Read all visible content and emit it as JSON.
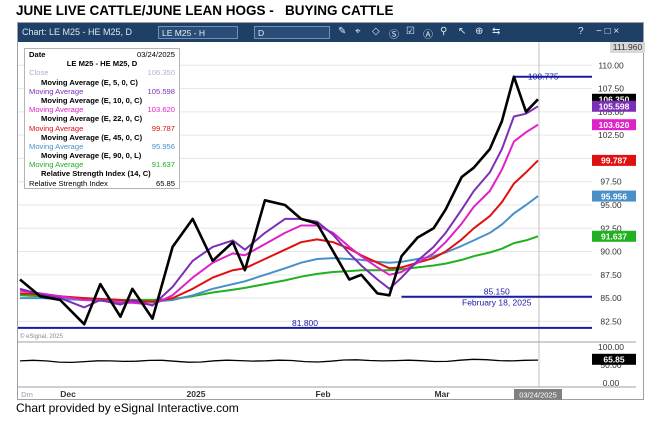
{
  "title": "JUNE LIVE CATTLE/JUNE LEAN HOGS -   BUYING CATTLE",
  "footer": "Chart provided by eSignal Interactive.com",
  "toolbar": {
    "chart_label": "Chart: LE M25 - HE M25, D",
    "symbol_box": "LE M25 - H",
    "interval_box": "D",
    "help": "?",
    "window_buttons": "− □ ×"
  },
  "watermark": "© eSignal, 2025",
  "legend": {
    "date_label": "Date",
    "date_value": "03/24/2025",
    "symbol": "LE M25 - HE M25, D",
    "rows": [
      {
        "text": "Close",
        "value": "106.350",
        "color": "#aab4c8",
        "bold": false
      },
      {
        "text": "Moving Average (E, 5, 0, C)",
        "value": "",
        "color": "#000000",
        "bold": true
      },
      {
        "text": "Moving Average",
        "value": "105.598",
        "color": "#7b2fb5",
        "bold": false
      },
      {
        "text": "Moving Average (E, 10, 0, C)",
        "value": "",
        "color": "#000000",
        "bold": true
      },
      {
        "text": "Moving Average",
        "value": "103.620",
        "color": "#e020c8",
        "bold": false
      },
      {
        "text": "Moving Average (E, 22, 0, C)",
        "value": "",
        "color": "#000000",
        "bold": true
      },
      {
        "text": "Moving Average",
        "value": "99.787",
        "color": "#e01010",
        "bold": false
      },
      {
        "text": "Moving Average (E, 45, 0, C)",
        "value": "",
        "color": "#000000",
        "bold": true
      },
      {
        "text": "Moving Average",
        "value": "95.956",
        "color": "#4a90c8",
        "bold": false
      },
      {
        "text": "Moving Average (E, 90, 0, L)",
        "value": "",
        "color": "#000000",
        "bold": true
      },
      {
        "text": "Moving Average",
        "value": "91.637",
        "color": "#20b020",
        "bold": false
      },
      {
        "text": "Relative Strength Index (14, C)",
        "value": "",
        "color": "#000000",
        "bold": true
      },
      {
        "text": "Relative Strength Index",
        "value": "65.85",
        "color": "#000000",
        "bold": false
      }
    ]
  },
  "colors": {
    "toolbar": "#1e3f66",
    "close": "#000000",
    "ma5": "#7b2fb5",
    "ma10": "#e020c8",
    "ma22": "#e01010",
    "ma45": "#4a90c8",
    "ma90": "#20b020",
    "level_lines": "#1a1aa0"
  },
  "chart_data": {
    "type": "line",
    "x": [
      "2024-11-15",
      "2024-11-20",
      "2024-11-25",
      "2024-12-01",
      "2024-12-05",
      "2024-12-10",
      "2024-12-13",
      "2024-12-18",
      "2024-12-23",
      "2024-12-28",
      "2025-01-02",
      "2025-01-07",
      "2025-01-10",
      "2025-01-15",
      "2025-01-20",
      "2025-01-24",
      "2025-01-28",
      "2025-02-01",
      "2025-02-05",
      "2025-02-08",
      "2025-02-12",
      "2025-02-15",
      "2025-02-18",
      "2025-02-22",
      "2025-02-26",
      "2025-03-01",
      "2025-03-05",
      "2025-03-08",
      "2025-03-12",
      "2025-03-15",
      "2025-03-18",
      "2025-03-21",
      "2025-03-24"
    ],
    "series": [
      {
        "key": "close",
        "values": [
          87.0,
          85.2,
          84.8,
          82.2,
          86.5,
          83.0,
          86.0,
          82.8,
          90.5,
          93.5,
          89.0,
          91.0,
          88.0,
          95.5,
          95.0,
          93.5,
          93.0,
          90.0,
          87.0,
          87.5,
          85.5,
          85.3,
          89.5,
          91.5,
          92.5,
          94.5,
          98.0,
          99.0,
          101.0,
          104.0,
          108.775,
          105.0,
          106.35
        ]
      },
      {
        "key": "ma5",
        "values": [
          86.0,
          85.4,
          85.0,
          84.0,
          84.8,
          84.3,
          84.8,
          84.2,
          86.2,
          89.0,
          90.5,
          91.2,
          90.2,
          92.0,
          93.5,
          93.5,
          93.2,
          91.8,
          89.8,
          88.5,
          87.0,
          86.0,
          87.2,
          89.0,
          90.5,
          92.0,
          94.5,
          96.5,
          98.5,
          101.0,
          104.5,
          104.8,
          105.598
        ]
      },
      {
        "key": "ma10",
        "values": [
          85.8,
          85.5,
          85.2,
          84.8,
          84.8,
          84.5,
          84.5,
          84.3,
          85.3,
          87.2,
          88.8,
          89.8,
          89.6,
          90.8,
          92.0,
          92.8,
          92.8,
          92.0,
          90.5,
          89.5,
          88.3,
          87.5,
          87.8,
          88.8,
          89.8,
          91.0,
          93.0,
          94.8,
          96.5,
          98.8,
          101.8,
          102.8,
          103.62
        ]
      },
      {
        "key": "ma22",
        "values": [
          85.5,
          85.4,
          85.2,
          85.0,
          84.9,
          84.8,
          84.7,
          84.6,
          85.0,
          86.0,
          87.2,
          88.0,
          88.2,
          89.2,
          90.2,
          91.0,
          91.3,
          91.0,
          90.3,
          89.6,
          88.8,
          88.2,
          88.3,
          88.8,
          89.3,
          90.0,
          91.3,
          92.5,
          93.8,
          95.3,
          97.3,
          98.5,
          99.787
        ]
      },
      {
        "key": "ma45",
        "values": [
          85.0,
          85.0,
          84.9,
          84.8,
          84.7,
          84.6,
          84.6,
          84.6,
          84.8,
          85.3,
          86.0,
          86.5,
          86.8,
          87.5,
          88.2,
          88.8,
          89.2,
          89.3,
          89.2,
          89.1,
          88.9,
          88.8,
          88.9,
          89.2,
          89.5,
          89.9,
          90.6,
          91.2,
          92.0,
          92.9,
          94.1,
          95.0,
          95.956
        ]
      },
      {
        "key": "ma90",
        "values": [
          85.3,
          85.2,
          85.1,
          85.0,
          84.9,
          84.8,
          84.8,
          84.8,
          84.9,
          85.2,
          85.6,
          85.9,
          86.1,
          86.5,
          86.9,
          87.3,
          87.6,
          87.8,
          87.9,
          88.0,
          88.0,
          88.0,
          88.1,
          88.3,
          88.5,
          88.7,
          89.1,
          89.5,
          89.9,
          90.3,
          90.9,
          91.2,
          91.637
        ]
      }
    ],
    "rsi": {
      "label": "65.85",
      "last": 65.85,
      "ylim": [
        0,
        100
      ],
      "ticks": [
        "100.00",
        "50.00",
        "0.00"
      ]
    },
    "ylim": [
      80.5,
      112.5
    ],
    "yticks": [
      "110.00",
      "107.50",
      "105.00",
      "102.50",
      "100.00",
      "97.50",
      "95.00",
      "92.50",
      "90.00",
      "87.50",
      "85.00",
      "82.50"
    ],
    "price_scale_top": "111.960",
    "xticks": [
      "Dec",
      "2025",
      "Feb",
      "Mar"
    ],
    "x_cursor_label": "03/24/2025",
    "x_left_label": "Dm",
    "price_tags": [
      {
        "value": 106.35,
        "label": "106.350",
        "bg": "#000000",
        "fg": "#ffffff"
      },
      {
        "value": 105.598,
        "label": "105.598",
        "bg": "#7b2fb5",
        "fg": "#ffffff"
      },
      {
        "value": 103.62,
        "label": "103.620",
        "bg": "#e020c8",
        "fg": "#ffffff"
      },
      {
        "value": 99.787,
        "label": "99.787",
        "bg": "#e01010",
        "fg": "#ffffff"
      },
      {
        "value": 95.956,
        "label": "95.956",
        "bg": "#4a90c8",
        "fg": "#ffffff"
      },
      {
        "value": 91.637,
        "label": "91.637",
        "bg": "#20b020",
        "fg": "#ffffff"
      }
    ],
    "levels": [
      {
        "value": 108.775,
        "label": "108.775",
        "from": "2025-03-18"
      },
      {
        "value": 85.15,
        "label": "85.150",
        "sublabel": "February 18, 2025",
        "from": "2025-02-18"
      },
      {
        "value": 81.8,
        "label": "81.800",
        "from": "2024-11-15"
      }
    ]
  }
}
